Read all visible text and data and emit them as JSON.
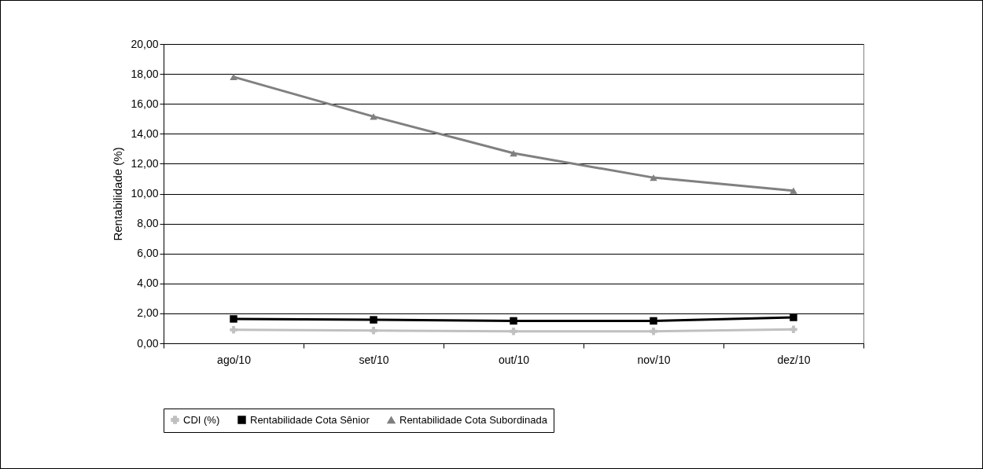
{
  "chart_data": {
    "type": "line",
    "ylabel": "Rentabilidade (%)",
    "categories": [
      "ago/10",
      "set/10",
      "out/10",
      "nov/10",
      "dez/10"
    ],
    "series": [
      {
        "name": "CDI (%)",
        "color": "#c0c0c0",
        "marker": "cross",
        "values": [
          0.9,
          0.85,
          0.8,
          0.8,
          0.93
        ]
      },
      {
        "name": "Rentabilidade Cota Sênior",
        "color": "#000000",
        "marker": "square",
        "values": [
          1.63,
          1.57,
          1.5,
          1.5,
          1.73
        ]
      },
      {
        "name": "Rentabilidade Cota Subordinada",
        "color": "#808080",
        "marker": "triangle",
        "values": [
          17.8,
          15.15,
          12.7,
          11.07,
          10.2
        ]
      }
    ],
    "ylim": [
      0,
      20
    ],
    "yticks": [
      {
        "value": 0,
        "label": "0,00"
      },
      {
        "value": 2,
        "label": "2,00"
      },
      {
        "value": 4,
        "label": "4,00"
      },
      {
        "value": 6,
        "label": "6,00"
      },
      {
        "value": 8,
        "label": "8,00"
      },
      {
        "value": 10,
        "label": "10,00"
      },
      {
        "value": 12,
        "label": "12,00"
      },
      {
        "value": 14,
        "label": "14,00"
      },
      {
        "value": 16,
        "label": "16,00"
      },
      {
        "value": 18,
        "label": "18,00"
      },
      {
        "value": 20,
        "label": "20,00"
      }
    ],
    "grid": "y",
    "legend": "bottom",
    "line_style": "solid"
  }
}
